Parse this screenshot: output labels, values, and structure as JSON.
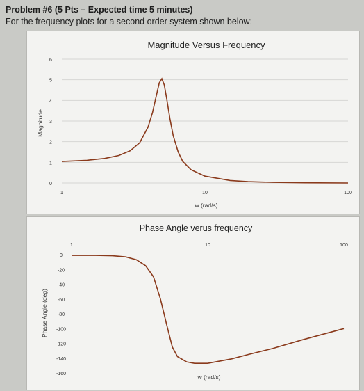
{
  "header": {
    "line1": "Problem #6 (5 Pts – Expected time 5 minutes)",
    "line2": "For the frequency plots for a second order system shown below:"
  },
  "chart_data": [
    {
      "type": "line",
      "title": "Magnitude Versus Frequency",
      "xlabel": "w (rad/s)",
      "ylabel": "Magnitude",
      "xscale": "log",
      "xlim": [
        1,
        100
      ],
      "ylim": [
        0,
        6
      ],
      "xticks": [
        "1",
        "10",
        "100"
      ],
      "yticks": [
        "0",
        "1",
        "2",
        "3",
        "4",
        "5",
        "6"
      ],
      "grid": true,
      "color": "#8a3a1c",
      "series": [
        {
          "x": [
            1,
            1.5,
            2,
            2.5,
            3,
            3.5,
            4,
            4.3,
            4.6,
            4.8,
            5,
            5.2,
            5.4,
            5.7,
            6,
            6.5,
            7,
            8,
            10,
            15,
            20,
            30,
            50,
            100
          ],
          "values": [
            1.04,
            1.1,
            1.19,
            1.33,
            1.56,
            1.95,
            2.7,
            3.4,
            4.3,
            4.85,
            5.05,
            4.75,
            4.1,
            3.1,
            2.3,
            1.5,
            1.04,
            0.64,
            0.33,
            0.12,
            0.065,
            0.03,
            0.01,
            0.0
          ]
        }
      ]
    },
    {
      "type": "line",
      "title": "Phase Angle verus frequency",
      "xlabel": "w (rad/s)",
      "ylabel": "Phase Angle (deg)",
      "xscale": "log",
      "xlim": [
        1,
        100
      ],
      "ylim": [
        -160,
        0
      ],
      "xticks": [
        "1",
        "10",
        "100"
      ],
      "yticks": [
        "0",
        "-20",
        "-40",
        "-60",
        "-80",
        "-100",
        "-120",
        "-140",
        "-160"
      ],
      "grid": false,
      "color": "#8a3a1c",
      "series": [
        {
          "x": [
            1,
            1.5,
            2,
            2.5,
            3,
            3.5,
            4,
            4.5,
            5,
            5.5,
            6,
            7,
            8,
            10,
            15,
            20,
            30,
            50,
            100
          ],
          "values": [
            -1,
            -1,
            -1.5,
            -3,
            -7,
            -15,
            -30,
            -60,
            -95,
            -125,
            -138,
            -145,
            -147,
            -147,
            -141,
            -135,
            -127,
            -115,
            -100
          ]
        }
      ]
    }
  ]
}
